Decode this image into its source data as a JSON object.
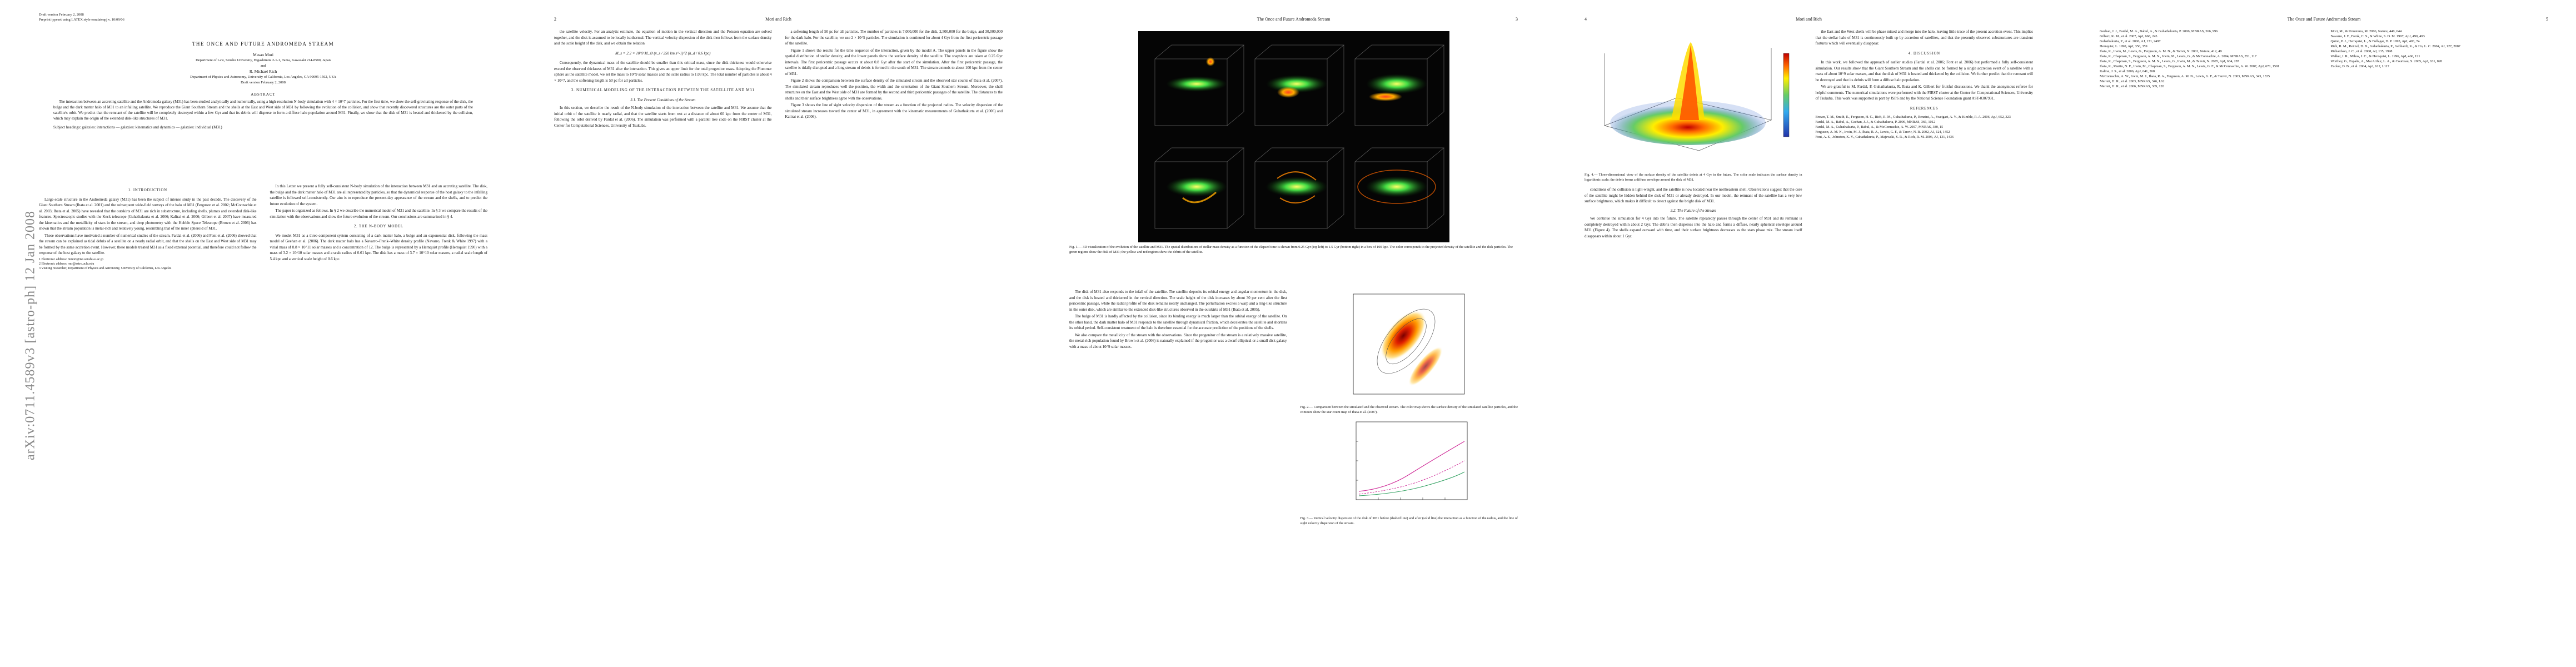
{
  "arxiv_stamp": "arXiv:0711.4589v3  [astro-ph]  12 Jan 2008",
  "pages": [
    {
      "header": [
        "Draft version February 2, 2008",
        "Preprint typeset using LATEX style emulateapj v. 10/09/06"
      ],
      "title": "THE ONCE AND FUTURE ANDROMEDA STREAM",
      "authors": [
        "Masao Mori",
        "Department of Law, Senshu University, Higashimita 2-1-1, Tama, Kawasaki 214-8580, Japan",
        "and",
        "R. Michael Rich",
        "Department of Physics and Astronomy, University of California, Los Angeles, CA 90095-1562, USA",
        "Draft version February 2, 2008"
      ],
      "abstract_heading": "ABSTRACT",
      "abstract": "The interaction between an accreting satellite and the Andromeda galaxy (M31) has been studied analytically and numerically, using a high-resolution N-body simulation with 4 × 10^7 particles. For the first time, we show the self-gravitating response of the disk, the bulge and the dark matter halo of M31 to an infalling satellite. We reproduce the Giant Southern Stream and the shells at the East and West side of M31 by following the evolution of the collision, and show that recently discovered structures are the outer parts of the satellite's orbit. We predict that the remnant of the satellite will be completely destroyed within a few Gyr and that its debris will disperse to form a diffuse halo population around M31. Finally, we show that the disk of M31 is heated and thickened by the collision, which may explain the origin of the extended disk-like structures of M31.",
      "subject_headings": "Subject headings: galaxies: interactions — galaxies: kinematics and dynamics — galaxies: individual (M31)",
      "columns": [
        [
          {
            "heading": "1. INTRODUCTION"
          },
          {
            "text": "Large-scale structure in the Andromeda galaxy (M31) has been the subject of intense study in the past decade. The discovery of the Giant Southern Stream (Ibata et al. 2001) and the subsequent wide-field surveys of the halo of M31 (Ferguson et al. 2002; McConnachie et al. 2003; Ibata et al. 2005) have revealed that the outskirts of M31 are rich in substructure, including shells, plumes and extended disk-like features. Spectroscopic studies with the Keck telescope (Guhathakurta et al. 2006; Kalirai et al. 2006; Gilbert et al. 2007) have measured the kinematics and the metallicity of stars in the stream, and deep photometry with the Hubble Space Telescope (Brown et al. 2006) has shown that the stream population is metal-rich and relatively young, resembling that of the inner spheroid of M31."
          },
          {
            "text": "These observations have motivated a number of numerical studies of the stream. Fardal et al. (2006) and Font et al. (2006) showed that the stream can be explained as tidal debris of a satellite on a nearly radial orbit, and that the shells on the East and West side of M31 may be formed by the same accretion event. However, these models treated M31 as a fixed external potential, and therefore could not follow the response of the host galaxy to the satellite."
          },
          {
            "footnote": "1 Electronic address: mmori@isc.senshu-u.ac.jp"
          },
          {
            "footnote": "2 Electronic address: rmr@astro.ucla.edu"
          },
          {
            "footnote": "3 Visiting researcher, Department of Physics and Astronomy, University of California, Los Angeles"
          }
        ],
        [
          {
            "text": "In this Letter we present a fully self-consistent N-body simulation of the interaction between M31 and an accreting satellite. The disk, the bulge and the dark matter halo of M31 are all represented by particles, so that the dynamical response of the host galaxy to the infalling satellite is followed self-consistently. Our aim is to reproduce the present-day appearance of the stream and the shells, and to predict the future evolution of the system."
          },
          {
            "text": "The paper is organized as follows. In § 2 we describe the numerical model of M31 and the satellite. In § 3 we compare the results of the simulation with the observations and show the future evolution of the stream. Our conclusions are summarized in § 4."
          },
          {
            "heading": "2. THE N-BODY MODEL"
          },
          {
            "text": "We model M31 as a three-component system consisting of a dark matter halo, a bulge and an exponential disk, following the mass model of Geehan et al. (2006). The dark matter halo has a Navarro–Frenk–White density profile (Navarro, Frenk & White 1997) with a virial mass of 8.8 × 10^11 solar masses and a concentration of 12. The bulge is represented by a Hernquist profile (Hernquist 1990) with a mass of 3.2 × 10^10 solar masses and a scale radius of 0.61 kpc. The disk has a mass of 3.7 × 10^10 solar masses, a radial scale length of 5.4 kpc and a vertical scale height of 0.6 kpc."
          }
        ]
      ]
    },
    {
      "page_number": "2",
      "running_title": "Mori and Rich",
      "columns": [
        [
          {
            "text": "the satellite velocity. For an analytic estimate, the equation of motion in the vertical direction and the Poisson equation are solved together, and the disk is assumed to be locally isothermal. The vertical velocity dispersion of the disk then follows from the surface density and the scale height of the disk, and we obtain the relation"
          },
          {
            "equation": "M_s = 2.2 × 10^9 M_⊙ (v_s / 250 km s^-1)^2 (h_d / 0.6 kpc)"
          },
          {
            "text": "Consequently, the dynamical mass of the satellite should be smaller than this critical mass, since the disk thickness would otherwise exceed the observed thickness of M31 after the interaction. This gives an upper limit for the total progenitor mass. Adopting the Plummer sphere as the satellite model, we set the mass to 10^9 solar masses and the scale radius to 1.03 kpc. The total number of particles is about 4 × 10^7, and the softening length is 50 pc for all particles."
          },
          {
            "heading": "3. NUMERICAL MODELING OF THE INTERACTION BETWEEN THE SATELLITE AND M31"
          },
          {
            "subheading": "3.1. The Present Conditions of the Stream"
          },
          {
            "text": "In this section, we describe the result of the N-body simulation of the interaction between the satellite and M31. We assume that the initial orbit of the satellite is nearly radial, and that the satellite starts from rest at a distance of about 60 kpc from the center of M31, following the orbit derived by Fardal et al. (2006). The simulation was performed with a parallel tree code on the FIRST cluster at the Center for Computational Sciences, University of Tsukuba."
          }
        ],
        [
          {
            "text": "a softening length of 50 pc for all particles. The number of particles is 7,000,000 for the disk, 2,500,000 for the bulge, and 30,000,000 for the dark halo. For the satellite, we use 2 × 10^5 particles. The simulation is continued for about 4 Gyr from the first pericentric passage of the satellite."
          },
          {
            "text": "Figure 1 shows the results for the time sequence of the interaction, given by the model A. The upper panels in the figure show the spatial distribution of stellar density, and the lower panels show the surface density of the satellite. The snapshots are taken at 0.25 Gyr intervals. The first pericentric passage occurs at about 0.8 Gyr after the start of the simulation. After the first pericentric passage, the satellite is tidally disrupted and a long stream of debris is formed in the south of M31. The stream extends to about 100 kpc from the center of M31."
          },
          {
            "text": "Figure 2 shows the comparison between the surface density of the simulated stream and the observed star counts of Ibata et al. (2007). The simulated stream reproduces well the position, the width and the orientation of the Giant Southern Stream. Moreover, the shell structures on the East and the West side of M31 are formed by the second and third pericentric passages of the satellite. The distances to the shells and their surface brightness agree with the observations."
          },
          {
            "text": "Figure 3 shows the line of sight velocity dispersion of the stream as a function of the projected radius. The velocity dispersion of the simulated stream increases toward the center of M31, in agreement with the kinematic measurements of Guhathakurta et al. (2006) and Kalirai et al. (2006)."
          }
        ]
      ]
    },
    {
      "page_number": "3",
      "running_title": "The Once and Future Andromeda Stream",
      "top": [
        {
          "figure": "Fig. 1.— 3D visualization of the evolution of the satellite and M31. The spatial distributions of stellar mass density as a function of the elapsed time is shown from 0.25 Gyr (top left) to 1.5 Gyr (bottom right) in a box of 100 kpc. The color corresponds to the projected density of the satellite and the disk particles. The green regions show the disk of M31; the yellow and red regions show the debris of the satellite."
        }
      ],
      "columns": [
        [
          {
            "text": "The disk of M31 also responds to the infall of the satellite. The satellite deposits its orbital energy and angular momentum in the disk, and the disk is heated and thickened in the vertical direction. The scale height of the disk increases by about 30 per cent after the first pericentric passage, while the radial profile of the disk remains nearly unchanged. The perturbation excites a warp and a ring-like structure in the outer disk, which are similar to the extended disk-like structures observed in the outskirts of M31 (Ibata et al. 2005)."
          },
          {
            "text": "The bulge of M31 is hardly affected by the collision, since its binding energy is much larger than the orbital energy of the satellite. On the other hand, the dark matter halo of M31 responds to the satellite through dynamical friction, which decelerates the satellite and shortens its orbital period. Self-consistent treatment of the halo is therefore essential for the accurate prediction of the positions of the shells."
          },
          {
            "text": "We also compare the metallicity of the stream with the observations. Since the progenitor of the stream is a relatively massive satellite, the metal-rich population found by Brown et al. (2006) is naturally explained if the progenitor was a dwarf elliptical or a small disk galaxy with a mass of about 10^9 solar masses."
          }
        ],
        [
          {
            "figure": "Fig. 2.— Comparison between the simulated and the observed stream. The color map shows the surface density of the simulated satellite particles, and the contours show the star count map of Ibata et al. (2007)."
          },
          {
            "figure": "Fig. 3.— Vertical velocity dispersion of the disk of M31 before (dashed line) and after (solid line) the interaction as a function of the radius, and the line of sight velocity dispersion of the stream."
          }
        ]
      ]
    },
    {
      "page_number": "4",
      "running_title": "Mori and Rich",
      "columns": [
        [
          {
            "figure": "Fig. 4.— Three-dimensional view of the surface density of the satellite debris at 4 Gyr in the future. The color scale indicates the surface density in logarithmic scale; the debris forms a diffuse envelope around the disk of M31."
          },
          {
            "text": "conditions of the collision is light-weight, and the satellite is now located near the northeastern shell. Observations suggest that the core of the satellite might be hidden behind the disk of M31 or already destroyed. In our model, the remnant of the satellite has a very low surface brightness, which makes it difficult to detect against the bright disk of M31."
          },
          {
            "subheading": "3.2. The Future of the Stream"
          },
          {
            "text": "We continue the simulation for 4 Gyr into the future. The satellite repeatedly passes through the center of M31 and its remnant is completely destroyed within about 2 Gyr. The debris then disperses into the halo and forms a diffuse, nearly spherical envelope around M31 (Figure 4). The shells expand outward with time, and their surface brightness decreases as the stars phase mix. The stream itself disappears within about 1 Gyr."
          }
        ],
        [
          {
            "text": "the East and the West shells will be phase mixed and merge into the halo, leaving little trace of the present accretion event. This implies that the stellar halo of M31 is continuously built up by accretion of satellites, and that the presently observed substructures are transient features which will eventually disappear."
          },
          {
            "heading": "4. DISCUSSION"
          },
          {
            "text": "In this work, we followed the approach of earlier studies (Fardal et al. 2006; Font et al. 2006) but performed a fully self-consistent simulation. Our results show that the Giant Southern Stream and the shells can be formed by a single accretion event of a satellite with a mass of about 10^9 solar masses, and that the disk of M31 is heated and thickened by the collision. We further predict that the remnant will be destroyed and that its debris will form a diffuse halo population."
          },
          {
            "text": "We are grateful to M. Fardal, P. Guhathakurta, R. Ibata and K. Gilbert for fruitful discussions. We thank the anonymous referee for helpful comments. The numerical simulations were performed with the FIRST cluster at the Center for Computational Sciences, University of Tsukuba. This work was supported in part by JSPS and by the National Science Foundation grant AST-0307931."
          },
          {
            "heading": "REFERENCES"
          },
          {
            "reference": "Brown, T. M., Smith, E., Ferguson, H. C., Rich, R. M., Guhathakurta, P., Renzini, A., Sweigart, A. V., & Kimble, R. A. 2006, ApJ, 652, 323"
          },
          {
            "reference": "Fardal, M. A., Babul, A., Geehan, J. J., & Guhathakurta, P. 2006, MNRAS, 366, 1012"
          },
          {
            "reference": "Fardal, M. A., Guhathakurta, P., Babul, A., & McConnachie, A. W. 2007, MNRAS, 380, 15"
          },
          {
            "reference": "Ferguson, A. M. N., Irwin, M. J., Ibata, R. A., Lewis, G. F., & Tanvir, N. R. 2002, AJ, 124, 1452"
          },
          {
            "reference": "Font, A. S., Johnston, K. V., Guhathakurta, P., Majewski, S. R., & Rich, R. M. 2006, AJ, 131, 1436"
          }
        ]
      ]
    },
    {
      "page_number": "5",
      "running_title": "The Once and Future Andromeda Stream",
      "columns": [
        [
          {
            "reference": "Geehan, J. J., Fardal, M. A., Babul, A., & Guhathakurta, P. 2006, MNRAS, 366, 996"
          },
          {
            "reference": "Gilbert, K. M., et al. 2007, ApJ, 668, 245"
          },
          {
            "reference": "Guhathakurta, P., et al. 2006, AJ, 131, 2497"
          },
          {
            "reference": "Hernquist, L. 1990, ApJ, 356, 359"
          },
          {
            "reference": "Ibata, R., Irwin, M., Lewis, G., Ferguson, A. M. N., & Tanvir, N. 2001, Nature, 412, 49"
          },
          {
            "reference": "Ibata, R., Chapman, S., Ferguson, A. M. N., Irwin, M., Lewis, G., & McConnachie, A. 2004, MNRAS, 351, 117"
          },
          {
            "reference": "Ibata, R., Chapman, S., Ferguson, A. M. N., Lewis, G., Irwin, M., & Tanvir, N. 2005, ApJ, 634, 287"
          },
          {
            "reference": "Ibata, R., Martin, N. F., Irwin, M., Chapman, S., Ferguson, A. M. N., Lewis, G. F., & McConnachie, A. W. 2007, ApJ, 671, 1591"
          },
          {
            "reference": "Kalirai, J. S., et al. 2006, ApJ, 641, 268"
          },
          {
            "reference": "McConnachie, A. W., Irwin, M. J., Ibata, R. A., Ferguson, A. M. N., Lewis, G. F., & Tanvir, N. 2003, MNRAS, 343, 1335"
          },
          {
            "reference": "Merrett, H. R., et al. 2003, MNRAS, 346, L62"
          },
          {
            "reference": "Merrett, H. R., et al. 2006, MNRAS, 369, 120"
          }
        ],
        [
          {
            "reference": "Mori, M., & Umemura, M. 2006, Nature, 440, 644"
          },
          {
            "reference": "Navarro, J. F., Frenk, C. S., & White, S. D. M. 1997, ApJ, 490, 493"
          },
          {
            "reference": "Quinn, P. J., Hernquist, L., & Fullagar, D. P. 1993, ApJ, 403, 74"
          },
          {
            "reference": "Rich, R. M., Reitzel, D. B., Guhathakurta, P., Gebhardt, K., & Ho, L. C. 2004, AJ, 127, 2087"
          },
          {
            "reference": "Richardson, J. C., et al. 2008, AJ, 135, 1998"
          },
          {
            "reference": "Walker, I. R., Mihos, J. C., & Hernquist, L. 1996, ApJ, 460, 121"
          },
          {
            "reference": "Worthey, G., España, A., MacArthur, L. A., & Courteau, S. 2005, ApJ, 631, 820"
          },
          {
            "reference": "Zucker, D. B., et al. 2004, ApJ, 612, L117"
          }
        ]
      ]
    }
  ]
}
